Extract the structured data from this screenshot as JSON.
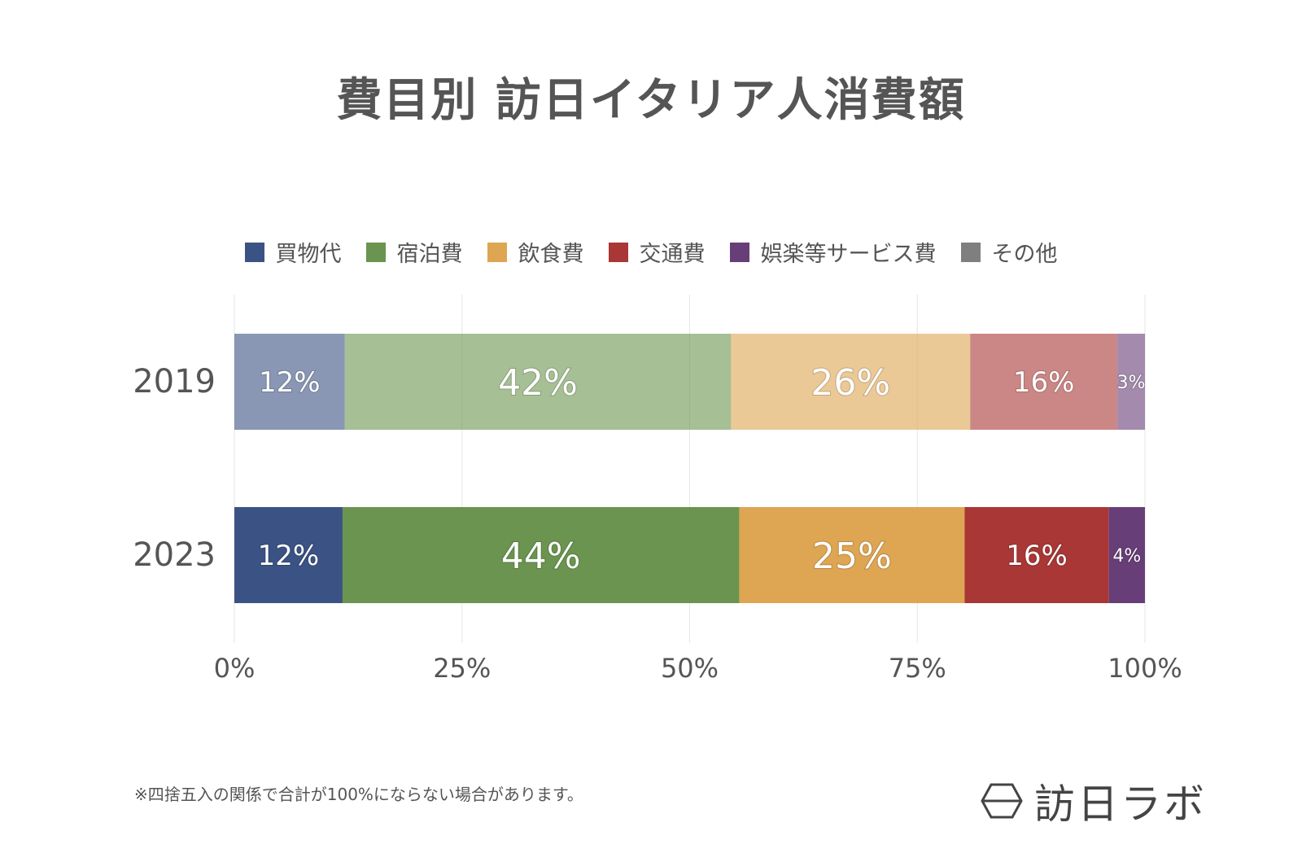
{
  "title": "費目別 訪日イタリア人消費額",
  "note": "※四捨五入の関係で合計が100%にならない場合があります。",
  "brand": {
    "name": "訪日ラボ",
    "icon": "hexagon-logo-icon"
  },
  "chart_data": {
    "type": "bar",
    "orientation": "horizontal",
    "stacked": "percent",
    "categories": [
      "2019",
      "2023"
    ],
    "series": [
      {
        "name": "買物代",
        "color": "#3b5284",
        "values": [
          12,
          12
        ],
        "labels": [
          "12%",
          "12%"
        ]
      },
      {
        "name": "宿泊費",
        "color": "#6a944f",
        "values": [
          42,
          44
        ],
        "labels": [
          "42%",
          "44%"
        ]
      },
      {
        "name": "飲食費",
        "color": "#dea552",
        "values": [
          26,
          25
        ],
        "labels": [
          "26%",
          "25%"
        ]
      },
      {
        "name": "交通費",
        "color": "#a93735",
        "values": [
          16,
          16
        ],
        "labels": [
          "16%",
          "16%"
        ]
      },
      {
        "name": "娯楽等サービス費",
        "color": "#673e78",
        "values": [
          3,
          4
        ],
        "labels": [
          "3%",
          "4%"
        ]
      },
      {
        "name": "その他",
        "color": "#7f7f7f",
        "values": [
          0,
          0
        ],
        "labels": [
          "",
          ""
        ]
      }
    ],
    "x_ticks": [
      "0%",
      "25%",
      "50%",
      "75%",
      "100%"
    ],
    "xlim": [
      0,
      100
    ],
    "grid": true,
    "legend_position": "top",
    "faded_category": "2019"
  }
}
